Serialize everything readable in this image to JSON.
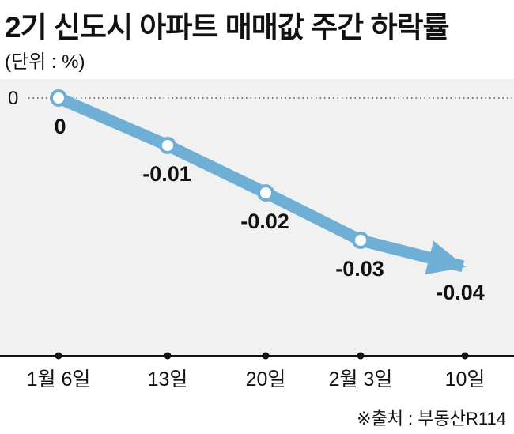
{
  "title": "2기 신도시 아파트 매매값 주간 하락률",
  "unit_label": "(단위 : %)",
  "source": "※출처 : 부동산R114",
  "chart_data": {
    "type": "line",
    "title": "2기 신도시 아파트 매매값 주간 하락률",
    "categories": [
      "1월 6일",
      "13일",
      "20일",
      "2월 3일",
      "10일"
    ],
    "values": [
      0,
      -0.01,
      -0.02,
      -0.03,
      -0.04
    ],
    "data_labels": [
      "0",
      "-0.01",
      "-0.02",
      "-0.03",
      "-0.04"
    ],
    "y_tick_label": "0",
    "ylim": [
      -0.048,
      0
    ],
    "grid": false,
    "legend": "none",
    "colors": {
      "line": "#6fafd6",
      "point_fill": "#ffffff",
      "plot_bg": "#f1f1f1",
      "axis": "#111111"
    }
  }
}
